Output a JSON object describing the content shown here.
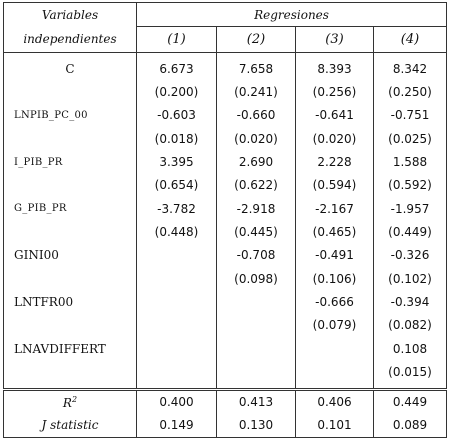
{
  "header": {
    "variables_line1": "Variables",
    "variables_line2": "independientes",
    "regressions_title": "Regresiones",
    "columns": [
      "(1)",
      "(2)",
      "(3)",
      "(4)"
    ]
  },
  "rows": [
    {
      "name": "C",
      "values": [
        "6.673",
        "7.658",
        "8.393",
        "8.342"
      ],
      "se": [
        "(0.200)",
        "(0.241)",
        "(0.256)",
        "(0.250)"
      ]
    },
    {
      "name": "LNPIB_PC_00",
      "values": [
        "-0.603",
        "-0.660",
        "-0.641",
        "-0.751"
      ],
      "se": [
        "(0.018)",
        "(0.020)",
        "(0.020)",
        "(0.025)"
      ]
    },
    {
      "name": "I_PIB_PR",
      "values": [
        "3.395",
        "2.690",
        "2.228",
        "1.588"
      ],
      "se": [
        "(0.654)",
        "(0.622)",
        "(0.594)",
        "(0.592)"
      ]
    },
    {
      "name": "G_PIB_PR",
      "values": [
        "-3.782",
        "-2.918",
        "-2.167",
        "-1.957"
      ],
      "se": [
        "(0.448)",
        "(0.445)",
        "(0.465)",
        "(0.449)"
      ]
    },
    {
      "name": "GINI00",
      "values": [
        "",
        "-0.708",
        "-0.491",
        "-0.326"
      ],
      "se": [
        "",
        "(0.098)",
        "(0.106)",
        "(0.102)"
      ]
    },
    {
      "name": "LNTFR00",
      "values": [
        "",
        "",
        "-0.666",
        "-0.394"
      ],
      "se": [
        "",
        "",
        "(0.079)",
        "(0.082)"
      ]
    },
    {
      "name": "LNAVDIFFERT",
      "values": [
        "",
        "",
        "",
        "0.108"
      ],
      "se": [
        "",
        "",
        "",
        "(0.015)"
      ]
    }
  ],
  "stats": [
    {
      "name": "R",
      "sup": "2",
      "values": [
        "0.400",
        "0.413",
        "0.406",
        "0.449"
      ]
    },
    {
      "name": "J statistic",
      "values": [
        "0.149",
        "0.130",
        "0.101",
        "0.089"
      ]
    }
  ]
}
